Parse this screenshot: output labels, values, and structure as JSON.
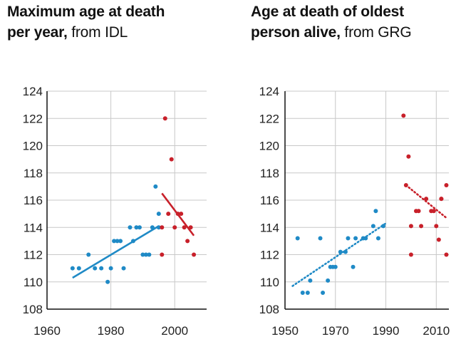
{
  "panels": [
    {
      "title_bold": "Maximum age at death",
      "title_bold2": "per year,",
      "title_light": " from IDL"
    },
    {
      "title_bold": "Age at death of oldest",
      "title_bold2": "person alive,",
      "title_light": " from GRG"
    }
  ],
  "colors": {
    "blue": "#1f8ac6",
    "red": "#c8202a",
    "grid": "#c8c8c8",
    "axis": "#111111"
  },
  "chart_data": [
    {
      "type": "scatter",
      "xlim": [
        1960,
        2010
      ],
      "ylim": [
        108,
        124
      ],
      "xticks": [
        1960,
        1980,
        2000
      ],
      "yticks": [
        108,
        110,
        112,
        114,
        116,
        118,
        120,
        122,
        124
      ],
      "grid": true,
      "series": [
        {
          "color": "blue",
          "points": [
            [
              1968,
              111
            ],
            [
              1970,
              111
            ],
            [
              1973,
              112
            ],
            [
              1975,
              111
            ],
            [
              1977,
              111
            ],
            [
              1979,
              110
            ],
            [
              1980,
              111
            ],
            [
              1981,
              113
            ],
            [
              1982,
              113
            ],
            [
              1983,
              113
            ],
            [
              1984,
              111
            ],
            [
              1986,
              114
            ],
            [
              1987,
              113
            ],
            [
              1988,
              114
            ],
            [
              1989,
              114
            ],
            [
              1990,
              112
            ],
            [
              1991,
              112
            ],
            [
              1992,
              112
            ],
            [
              1993,
              114
            ],
            [
              1994,
              117
            ],
            [
              1995,
              114
            ],
            [
              1995,
              115
            ]
          ],
          "trend": {
            "style": "solid",
            "from": [
              1968,
              110.3
            ],
            "to": [
              1995,
              114.1
            ]
          }
        },
        {
          "color": "red",
          "points": [
            [
              1996,
              114
            ],
            [
              1996,
              112
            ],
            [
              1997,
              122
            ],
            [
              1998,
              115
            ],
            [
              1999,
              119
            ],
            [
              2000,
              114
            ],
            [
              2001,
              115
            ],
            [
              2002,
              115
            ],
            [
              2003,
              114
            ],
            [
              2004,
              113
            ],
            [
              2005,
              114
            ],
            [
              2006,
              112
            ]
          ],
          "trend": {
            "style": "solid",
            "from": [
              1996,
              116.5
            ],
            "to": [
              2006,
              113.4
            ]
          }
        }
      ]
    },
    {
      "type": "scatter",
      "xlim": [
        1950,
        2015
      ],
      "ylim": [
        108,
        124
      ],
      "xticks": [
        1950,
        1970,
        1990,
        2010
      ],
      "yticks": [
        108,
        110,
        112,
        114,
        116,
        118,
        120,
        122,
        124
      ],
      "grid": true,
      "series": [
        {
          "color": "blue",
          "points": [
            [
              1955,
              113.2
            ],
            [
              1957,
              109.2
            ],
            [
              1959,
              109.2
            ],
            [
              1960,
              110.1
            ],
            [
              1964,
              113.2
            ],
            [
              1965,
              109.2
            ],
            [
              1967,
              110.1
            ],
            [
              1968,
              111.1
            ],
            [
              1969,
              111.1
            ],
            [
              1970,
              111.1
            ],
            [
              1972,
              112.2
            ],
            [
              1974,
              112.2
            ],
            [
              1975,
              113.2
            ],
            [
              1977,
              111.1
            ],
            [
              1978,
              113.2
            ],
            [
              1981,
              113.2
            ],
            [
              1982,
              113.2
            ],
            [
              1985,
              114.1
            ],
            [
              1986,
              115.2
            ],
            [
              1987,
              113.2
            ],
            [
              1989,
              114.1
            ]
          ],
          "trend": {
            "style": "dotted",
            "from": [
              1953,
              109.7
            ],
            "to": [
              1990,
              114.3
            ]
          }
        },
        {
          "color": "red",
          "points": [
            [
              1997,
              122.2
            ],
            [
              1998,
              117.1
            ],
            [
              1999,
              119.2
            ],
            [
              2000,
              114.1
            ],
            [
              2000,
              112
            ],
            [
              2002,
              115.2
            ],
            [
              2003,
              115.2
            ],
            [
              2004,
              114.1
            ],
            [
              2006,
              116.1
            ],
            [
              2008,
              115.2
            ],
            [
              2009,
              115.2
            ],
            [
              2010,
              114.1
            ],
            [
              2011,
              113.1
            ],
            [
              2012,
              116.1
            ],
            [
              2012,
              116.1
            ],
            [
              2014,
              117.1
            ],
            [
              2014,
              112
            ]
          ],
          "trend": {
            "style": "dotted",
            "from": [
              1998,
              117.1
            ],
            "to": [
              2014,
              114.7
            ]
          }
        }
      ]
    }
  ]
}
